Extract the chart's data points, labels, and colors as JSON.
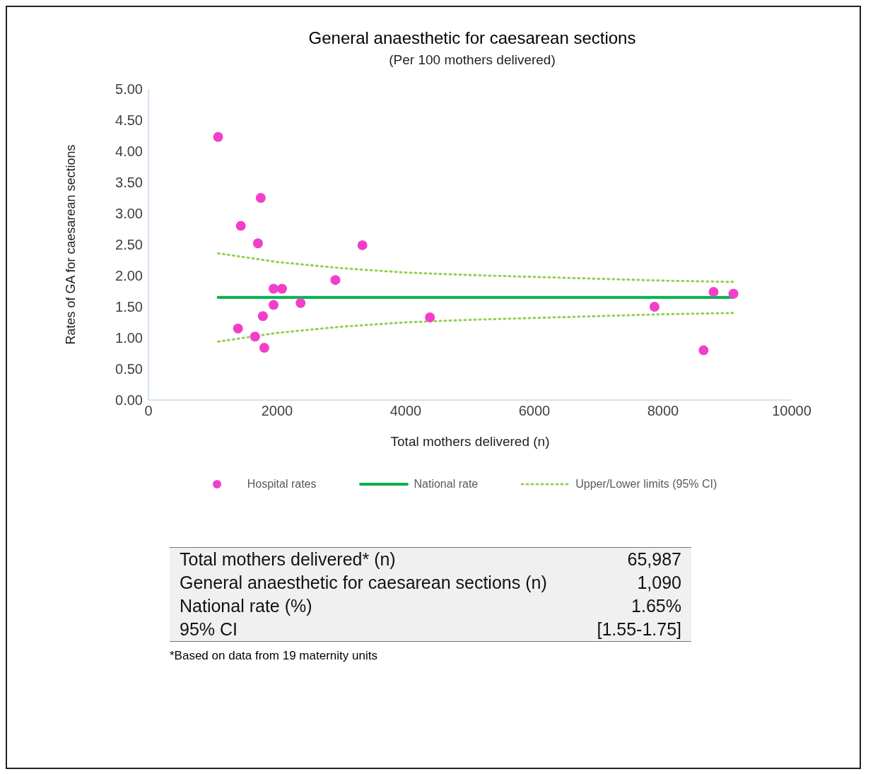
{
  "chart_data": {
    "type": "scatter",
    "title": "General anaesthetic for caesarean sections",
    "subtitle": "(Per 100 mothers delivered)",
    "xlabel": "Total mothers delivered (n)",
    "ylabel": "Rates of GA for caesarean sections",
    "xlim": [
      0,
      10000
    ],
    "xticks": [
      0,
      2000,
      4000,
      6000,
      8000,
      10000
    ],
    "ylim": [
      0,
      5
    ],
    "yticks": [
      {
        "value": 0,
        "label": "0.00"
      },
      {
        "value": 0.5,
        "label": "0.50"
      },
      {
        "value": 1,
        "label": "1.00"
      },
      {
        "value": 1.5,
        "label": "1.50"
      },
      {
        "value": 2,
        "label": "2.00"
      },
      {
        "value": 2.5,
        "label": "2.50"
      },
      {
        "value": 3,
        "label": "3.00"
      },
      {
        "value": 3.5,
        "label": "3.50"
      },
      {
        "value": 4,
        "label": "4.00"
      },
      {
        "value": 4.5,
        "label": "4.50"
      },
      {
        "value": 5,
        "label": "5.00"
      }
    ],
    "grid": false,
    "legend": "bottom",
    "series": [
      {
        "name": "Hospital rates",
        "color": "#f23fca",
        "marker": "circle",
        "x": [
          1083,
          1746,
          1436,
          1702,
          3326,
          2906,
          1945,
          2077,
          1945,
          2365,
          1779,
          1392,
          1657,
          1801,
          4376,
          7867,
          8630,
          8785,
          9094
        ],
        "values": [
          4.23,
          3.25,
          2.8,
          2.52,
          2.49,
          1.93,
          1.79,
          1.79,
          1.53,
          1.56,
          1.35,
          1.15,
          1.02,
          0.84,
          1.33,
          1.5,
          0.8,
          1.74,
          1.71
        ]
      },
      {
        "name": "National rate",
        "type": "line",
        "color": "#00b050",
        "line_style": "solid",
        "marker": "none",
        "x": [
          1083,
          9094
        ],
        "values": [
          1.65,
          1.65
        ]
      },
      {
        "name": "Upper/Lower limits (95% CI)",
        "type": "line",
        "color": "#92d050",
        "line_style": "dotted",
        "marker": "none",
        "x": [
          1083,
          2000,
          3000,
          4000,
          5000,
          6000,
          7000,
          8000,
          9094
        ],
        "values": [
          2.36,
          2.22,
          2.12,
          2.05,
          2.01,
          1.98,
          1.95,
          1.92,
          1.9
        ]
      },
      {
        "type": "line",
        "color": "#92d050",
        "line_style": "dotted",
        "marker": "none",
        "x": [
          1083,
          2000,
          3000,
          4000,
          5000,
          6000,
          7000,
          8000,
          9094
        ],
        "values": [
          0.94,
          1.08,
          1.18,
          1.25,
          1.29,
          1.32,
          1.35,
          1.38,
          1.4
        ]
      }
    ],
    "annotations": [
      "Total mothers delivered* (n)",
      "65,987",
      "General anaesthetic for caesarean sections (n)",
      "1,090",
      "National rate (%)",
      "1.65%",
      "95% CI",
      "[1.55-1.75]",
      "*Based on data from 19 maternity units"
    ]
  }
}
